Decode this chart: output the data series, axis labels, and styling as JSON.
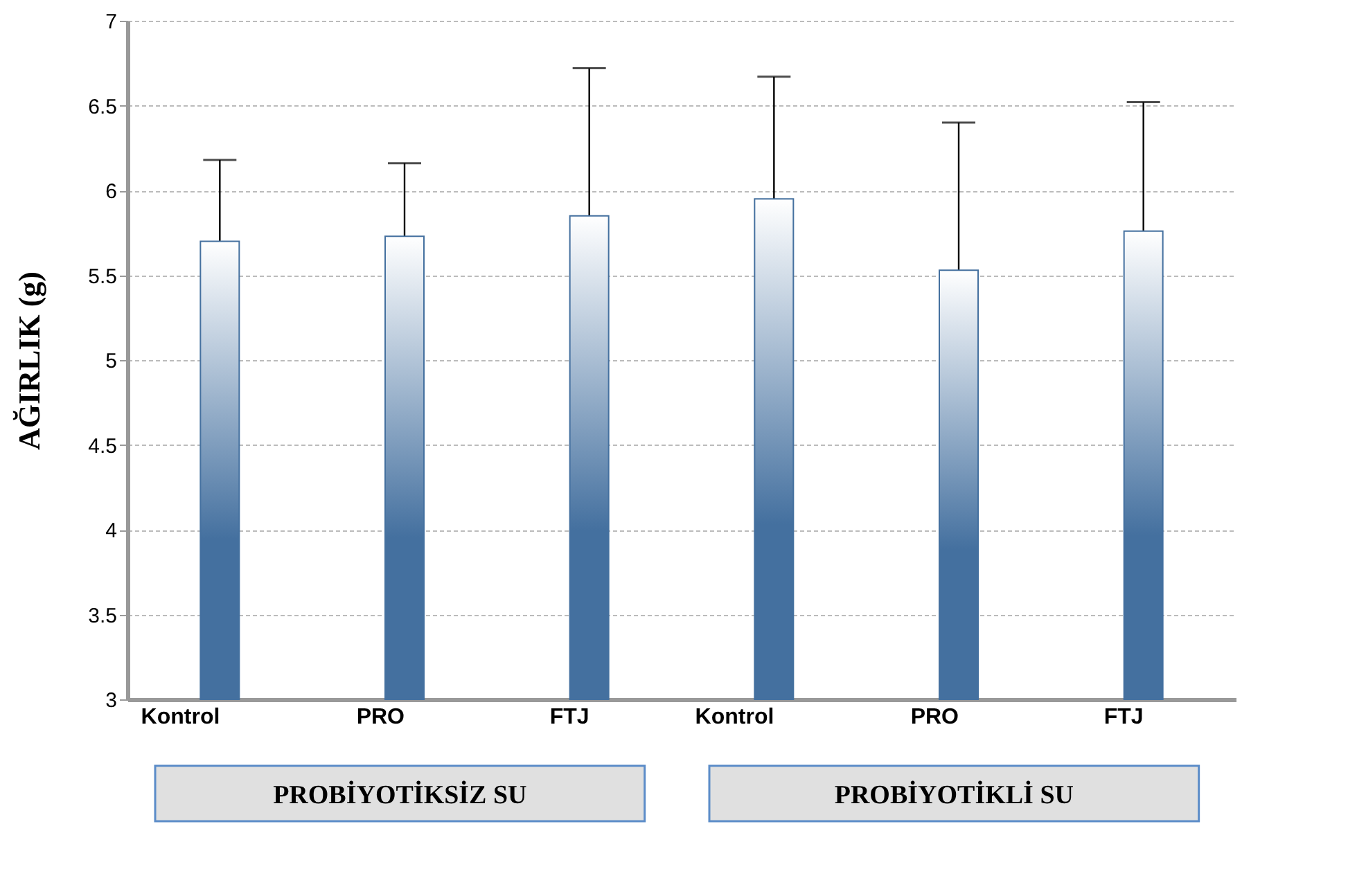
{
  "chart_data": {
    "type": "bar",
    "ylabel": "AĞIRLIK (g)",
    "categories": [
      "Kontrol",
      "PRO",
      "FTJ",
      "Kontrol",
      "PRO",
      "FTJ"
    ],
    "values": [
      5.7,
      5.73,
      5.85,
      5.95,
      5.53,
      5.76
    ],
    "errors": [
      [
        5.7,
        6.18
      ],
      [
        5.73,
        6.16
      ],
      [
        5.85,
        6.72
      ],
      [
        5.95,
        6.67
      ],
      [
        5.53,
        6.4
      ],
      [
        5.76,
        6.52
      ]
    ],
    "color": "#44709f",
    "ylim": [
      3,
      7
    ],
    "yticks": [
      3,
      3.5,
      4,
      4.5,
      5,
      5.5,
      6,
      6.5,
      7
    ],
    "grid": "y",
    "annotations": [
      "PROBİYOTİKSİZ SU",
      "PROBİYOTİKLİ SU"
    ]
  }
}
